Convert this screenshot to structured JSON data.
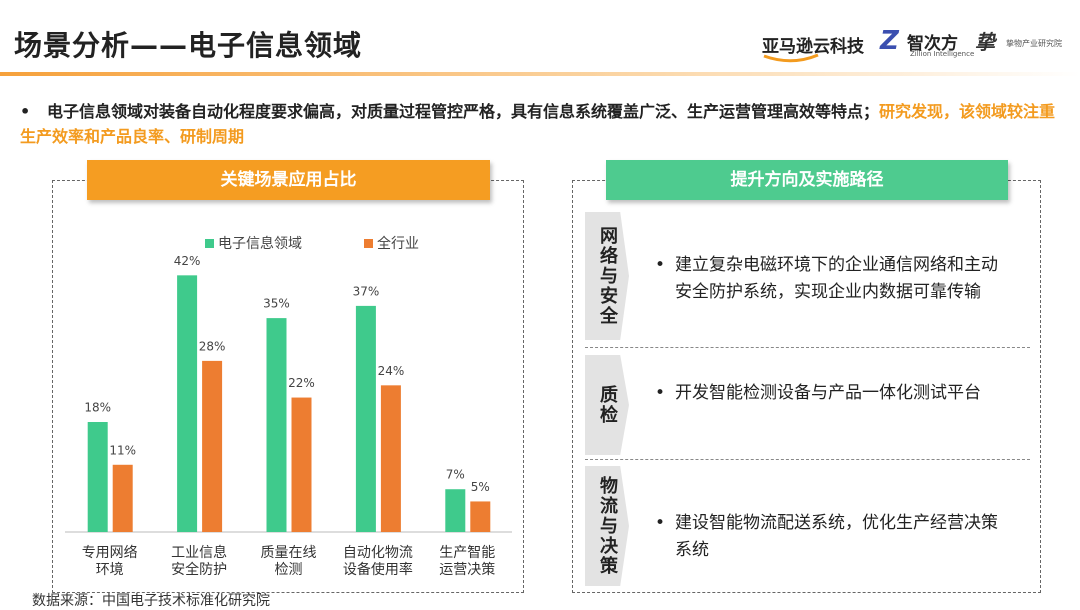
{
  "header": {
    "title": "场景分析——电子信息领域",
    "logos": [
      "亚马逊云科技",
      "智次方",
      "Zillion Intelligence",
      "挚物产业研究院"
    ]
  },
  "intro": {
    "main": "电子信息领域对装备自动化程度要求偏高，对质量过程管控严格，具有信息系统覆盖广泛、生产运营管理高效等特点；",
    "highlight": "研究发现，该领域较注重生产效率和产品良率、研制周期"
  },
  "chart_data": {
    "type": "bar",
    "title": "关键场景应用占比",
    "categories": [
      "专用网络\n环境",
      "工业信息\n安全防护",
      "质量在线\n检测",
      "自动化物流\n设备使用率",
      "生产智能\n运营决策"
    ],
    "series": [
      {
        "name": "电子信息领域",
        "color": "#3fca8c",
        "values": [
          18,
          42,
          35,
          37,
          7
        ],
        "value_labels": [
          "18%",
          "42%",
          "35%",
          "37%",
          "7%"
        ]
      },
      {
        "name": "全行业",
        "color": "#ed7d31",
        "values": [
          11,
          28,
          22,
          24,
          5
        ],
        "value_labels": [
          "11%",
          "28%",
          "22%",
          "24%",
          "5%"
        ]
      }
    ],
    "ylim": [
      0,
      45
    ]
  },
  "paths": {
    "title": "提升方向及实施路径",
    "sections": [
      {
        "tab": "网络与安全",
        "text": "建立复杂电磁环境下的企业通信网络和主动安全防护系统，实现企业内数据可靠传输"
      },
      {
        "tab": "质检",
        "text": "开发智能检测设备与产品一体化测试平台"
      },
      {
        "tab": "物流与决策",
        "text": "建设智能物流配送系统，优化生产经营决策系统"
      }
    ]
  },
  "source": "数据来源：中国电子技术标准化研究院"
}
